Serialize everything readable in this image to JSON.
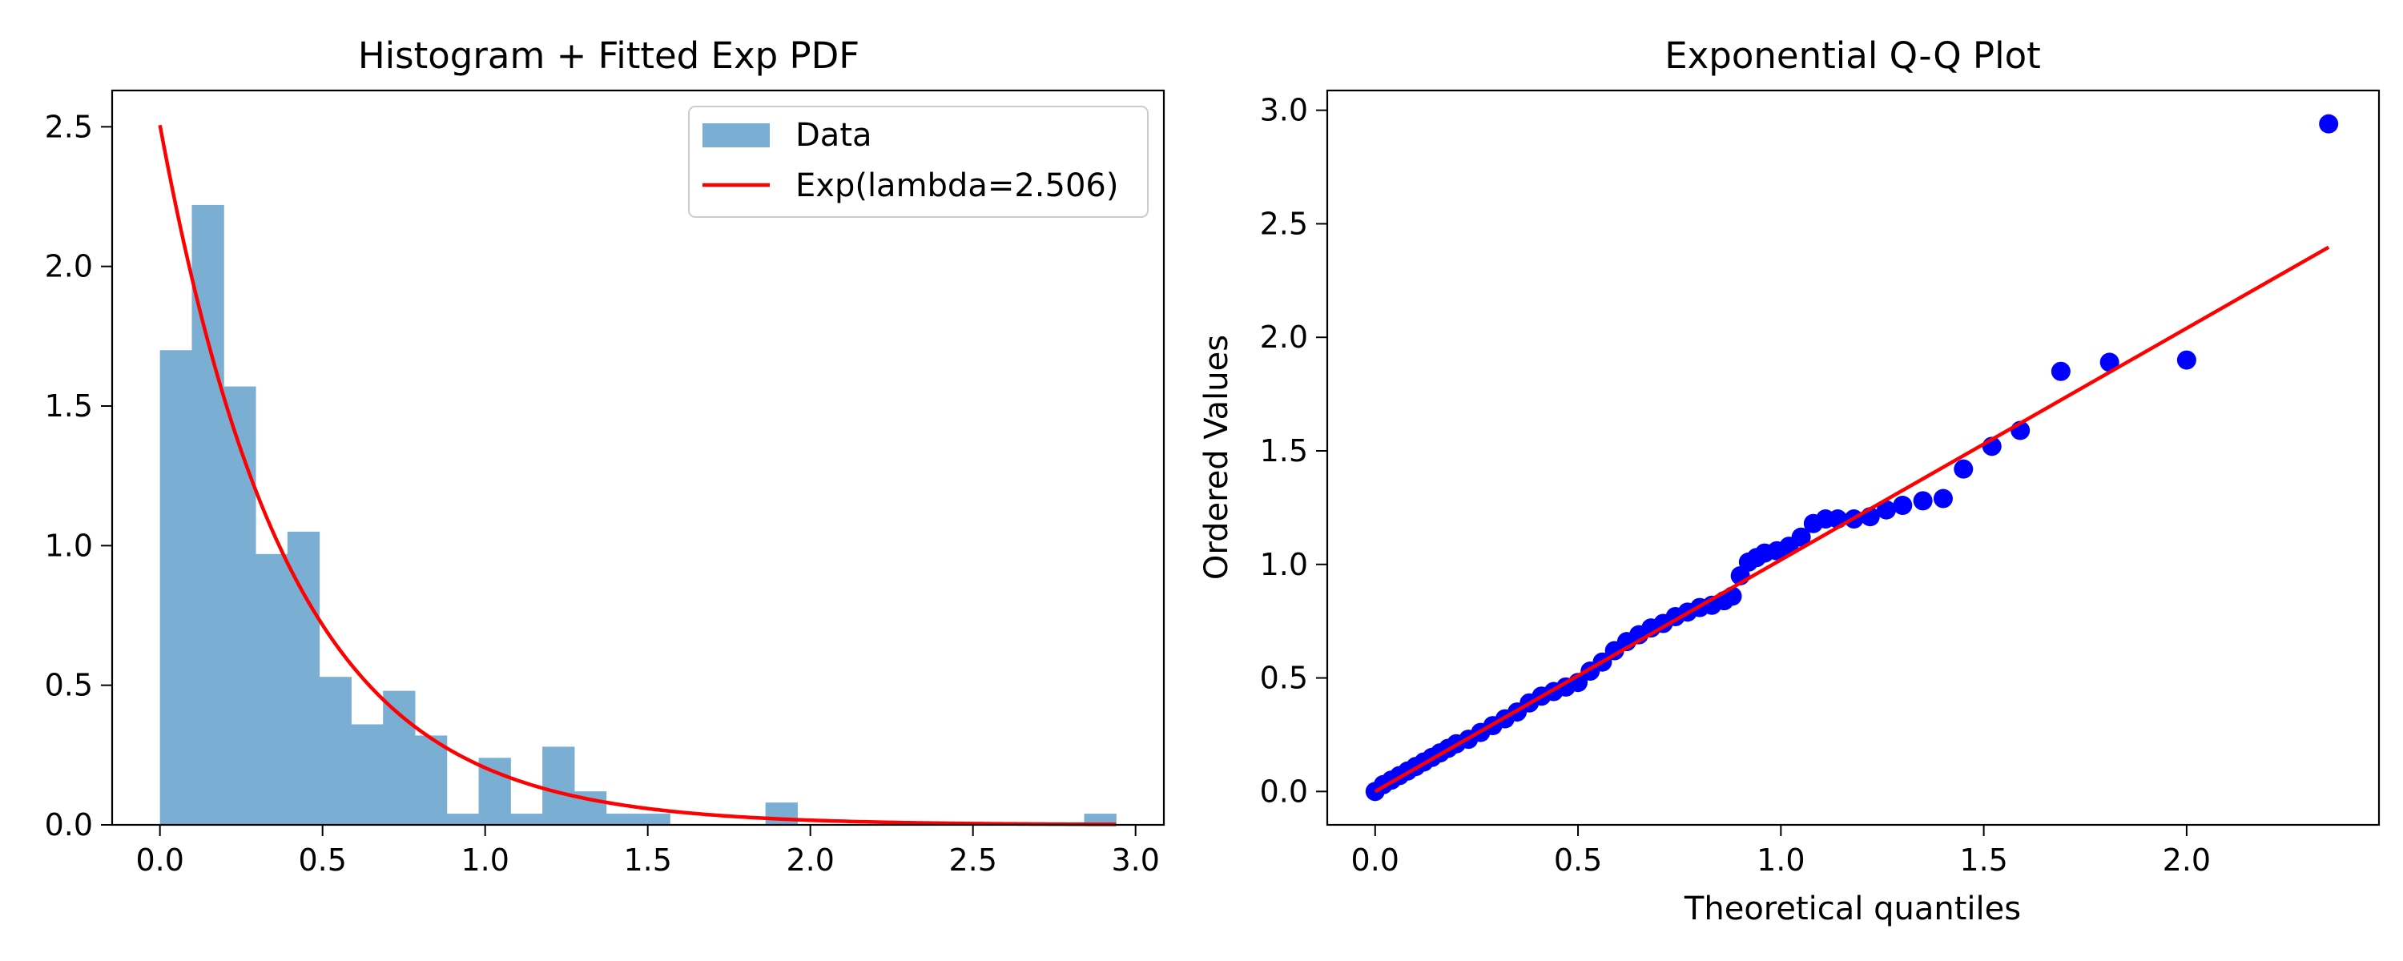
{
  "chart_data": [
    {
      "type": "bar",
      "title": "Histogram + Fitted Exp PDF",
      "xlabel": "",
      "ylabel": "",
      "xlim": [
        -0.147,
        3.087
      ],
      "ylim": [
        0,
        2.63
      ],
      "xticks": [
        "0.0",
        "0.5",
        "1.0",
        "1.5",
        "2.0",
        "2.5",
        "3.0"
      ],
      "yticks": [
        "0.0",
        "0.5",
        "1.0",
        "1.5",
        "2.0",
        "2.5"
      ],
      "grid": false,
      "legend_position": "top-right",
      "legend": [
        "Data",
        "Exp(lambda=2.506)"
      ],
      "bar_color": "#7aaed2",
      "line_color": "#ff0000",
      "histogram": {
        "name": "Data",
        "bin_start": 0.0,
        "bin_width": 0.098,
        "densities": [
          1.7,
          2.22,
          1.57,
          0.97,
          1.05,
          0.53,
          0.36,
          0.48,
          0.32,
          0.04,
          0.24,
          0.04,
          0.28,
          0.12,
          0.04,
          0.04,
          0.0,
          0.0,
          0.0,
          0.08,
          0.0,
          0.0,
          0.0,
          0.0,
          0.0,
          0.0,
          0.0,
          0.0,
          0.0,
          0.04
        ]
      },
      "fit_line": {
        "name": "Exp(lambda=2.506)",
        "lambda": 2.506,
        "x_range": [
          0.0,
          2.94
        ]
      }
    },
    {
      "type": "scatter",
      "title": "Exponential Q-Q Plot",
      "xlabel": "Theoretical quantiles",
      "ylabel": "Ordered Values",
      "xlim": [
        -0.118,
        2.474
      ],
      "ylim": [
        -0.147,
        3.087
      ],
      "xticks": [
        "0.0",
        "0.5",
        "1.0",
        "1.5",
        "2.0"
      ],
      "yticks": [
        "0.0",
        "0.5",
        "1.0",
        "1.5",
        "2.0",
        "2.5",
        "3.0"
      ],
      "grid": false,
      "point_color": "#0000ff",
      "line_color": "#ff0000",
      "points": {
        "x": [
          0.0,
          0.02,
          0.04,
          0.06,
          0.08,
          0.1,
          0.12,
          0.14,
          0.16,
          0.18,
          0.2,
          0.23,
          0.26,
          0.29,
          0.32,
          0.35,
          0.38,
          0.41,
          0.44,
          0.47,
          0.5,
          0.53,
          0.56,
          0.59,
          0.62,
          0.65,
          0.68,
          0.71,
          0.74,
          0.77,
          0.8,
          0.83,
          0.86,
          0.88,
          0.9,
          0.92,
          0.94,
          0.96,
          0.99,
          1.02,
          1.05,
          1.08,
          1.11,
          1.14,
          1.18,
          1.22,
          1.26,
          1.3,
          1.35,
          1.4,
          1.45,
          1.52,
          1.59,
          1.69,
          1.81,
          2.0,
          2.35
        ],
        "y": [
          0.0,
          0.03,
          0.05,
          0.07,
          0.09,
          0.11,
          0.13,
          0.15,
          0.17,
          0.19,
          0.21,
          0.23,
          0.26,
          0.29,
          0.32,
          0.35,
          0.39,
          0.42,
          0.44,
          0.46,
          0.48,
          0.53,
          0.57,
          0.62,
          0.66,
          0.69,
          0.72,
          0.74,
          0.77,
          0.79,
          0.81,
          0.82,
          0.84,
          0.86,
          0.95,
          1.01,
          1.03,
          1.05,
          1.06,
          1.08,
          1.12,
          1.18,
          1.2,
          1.2,
          1.2,
          1.21,
          1.24,
          1.26,
          1.28,
          1.29,
          1.42,
          1.52,
          1.59,
          1.85,
          1.89,
          1.9,
          2.94
        ]
      },
      "fit_line": {
        "slope": 1.02,
        "intercept": 0.0,
        "x_range": [
          0.0,
          2.35
        ]
      }
    }
  ]
}
